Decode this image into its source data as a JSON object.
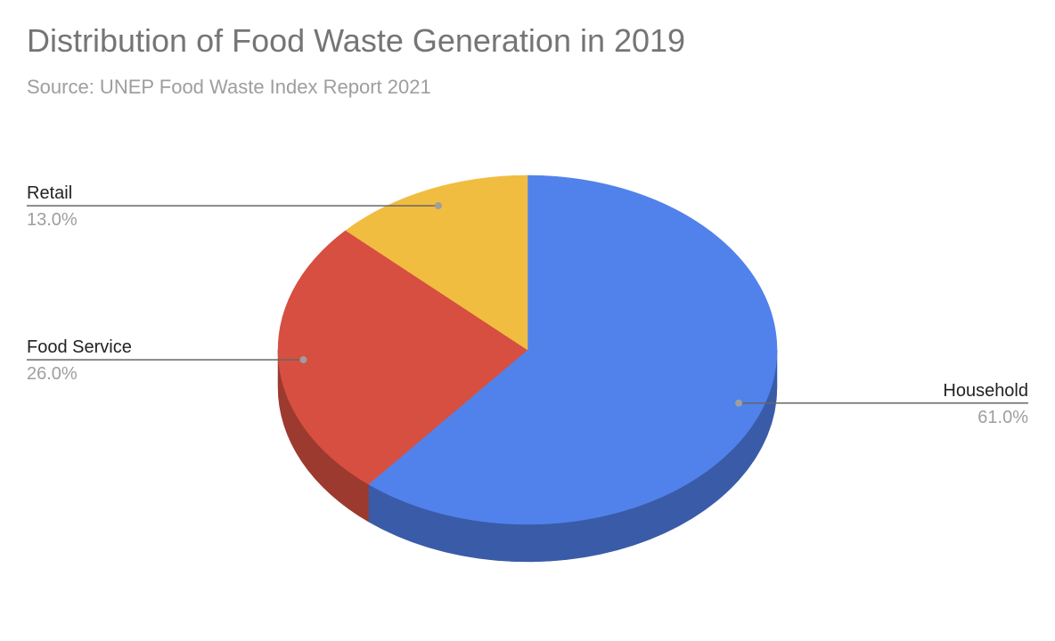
{
  "title": "Distribution of Food Waste Generation in 2019",
  "subtitle": "Source: UNEP Food Waste Index Report 2021",
  "chart_data": {
    "type": "pie",
    "style": "3d",
    "title": "Distribution of Food Waste Generation in 2019",
    "subtitle": "Source: UNEP Food Waste Index Report 2021",
    "slices": [
      {
        "label": "Household",
        "value": 61.0,
        "value_label": "61.0%",
        "color": "#5182eb",
        "side_color": "#3a5ba8"
      },
      {
        "label": "Food Service",
        "value": 26.0,
        "value_label": "26.0%",
        "color": "#d64f40",
        "side_color": "#9c3a2f"
      },
      {
        "label": "Retail",
        "value": 13.0,
        "value_label": "13.0%",
        "color": "#f0bd41",
        "side_color": "#b08a2f"
      }
    ]
  }
}
